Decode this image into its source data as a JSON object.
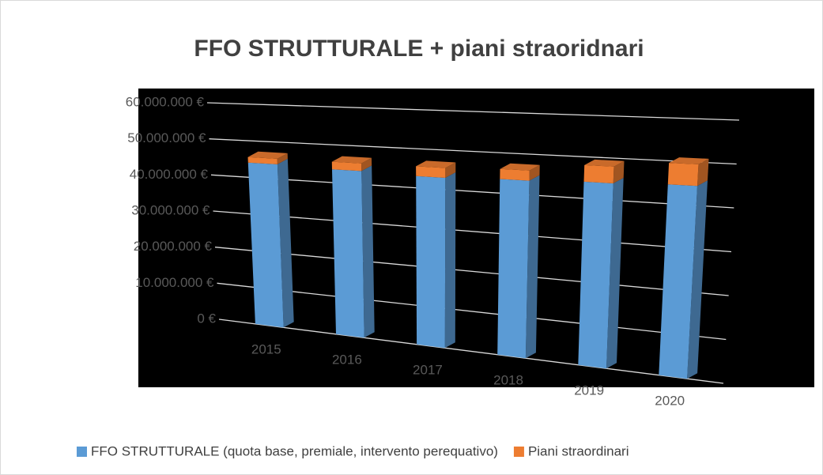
{
  "chart_data": {
    "type": "bar3d_stacked",
    "title": "FFO STRUTTURALE + piani straoridnari",
    "categories": [
      "2015",
      "2016",
      "2017",
      "2018",
      "2019",
      "2020"
    ],
    "series": [
      {
        "name": "FFO STRUTTURALE (quota base, premiale, intervento perequativo)",
        "color": "#5b9bd5",
        "values": [
          44000000,
          43500000,
          43000000,
          43500000,
          44000000,
          44500000
        ]
      },
      {
        "name": "Piani straordinari",
        "color": "#ed7d31",
        "values": [
          1500000,
          2000000,
          2500000,
          2500000,
          4000000,
          5000000
        ]
      }
    ],
    "ylim": [
      0,
      60000000
    ],
    "yticks": [
      {
        "value": 0,
        "label": "0 €"
      },
      {
        "value": 10000000,
        "label": "10.000.000 €"
      },
      {
        "value": 20000000,
        "label": "20.000.000 €"
      },
      {
        "value": 30000000,
        "label": "30.000.000 €"
      },
      {
        "value": 40000000,
        "label": "40.000.000 €"
      },
      {
        "value": 50000000,
        "label": "50.000.000 €"
      },
      {
        "value": 60000000,
        "label": "60.000.000 €"
      }
    ],
    "grid": true,
    "legend": "bottom"
  }
}
